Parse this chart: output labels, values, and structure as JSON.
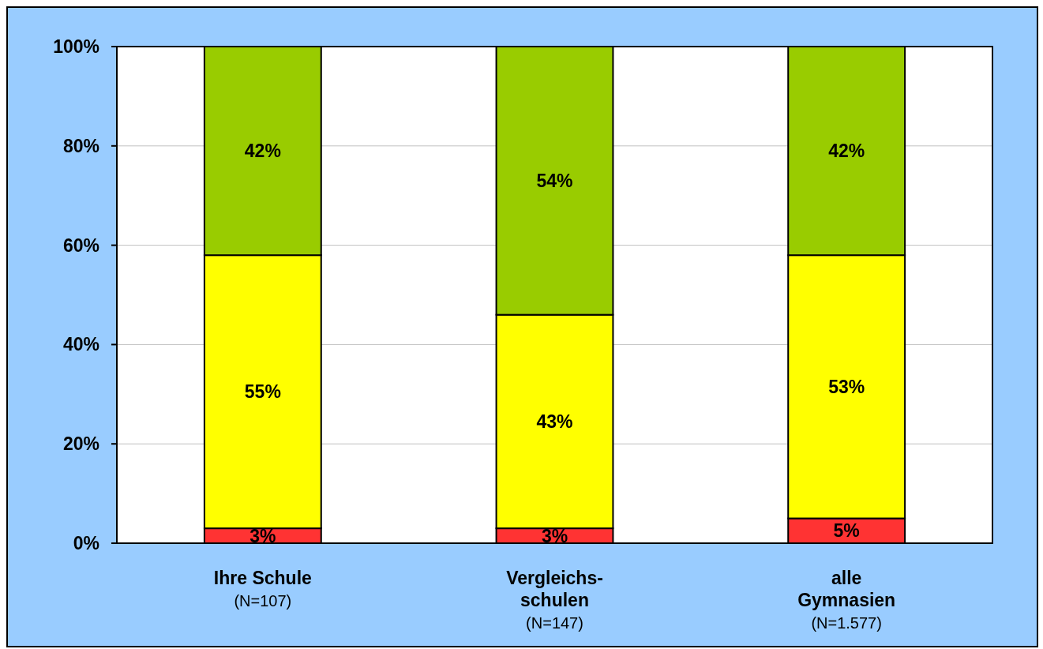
{
  "chart_data": {
    "type": "bar",
    "stacked": true,
    "categories": [
      "Ihre Schule\n(N=107)",
      "Vergleichs-\nschulen\n(N=147)",
      "alle\nGymnasien\n(N=1.577)"
    ],
    "series": [
      {
        "color": "#ff3333",
        "values": [
          3,
          3,
          5
        ],
        "value_labels": [
          "3%",
          "3%",
          "5%"
        ]
      },
      {
        "color": "#ffff00",
        "values": [
          55,
          43,
          53
        ],
        "value_labels": [
          "55%",
          "43%",
          "53%"
        ]
      },
      {
        "color": "#99cc00",
        "values": [
          42,
          54,
          42
        ],
        "value_labels": [
          "42%",
          "54%",
          "42%"
        ]
      }
    ],
    "ylim": [
      0,
      100
    ],
    "yticks": [
      {
        "value": 0,
        "label": "0%"
      },
      {
        "value": 20,
        "label": "20%"
      },
      {
        "value": 40,
        "label": "40%"
      },
      {
        "value": 60,
        "label": "60%"
      },
      {
        "value": 80,
        "label": "80%"
      },
      {
        "value": 100,
        "label": "100%"
      }
    ],
    "grid": "y"
  }
}
